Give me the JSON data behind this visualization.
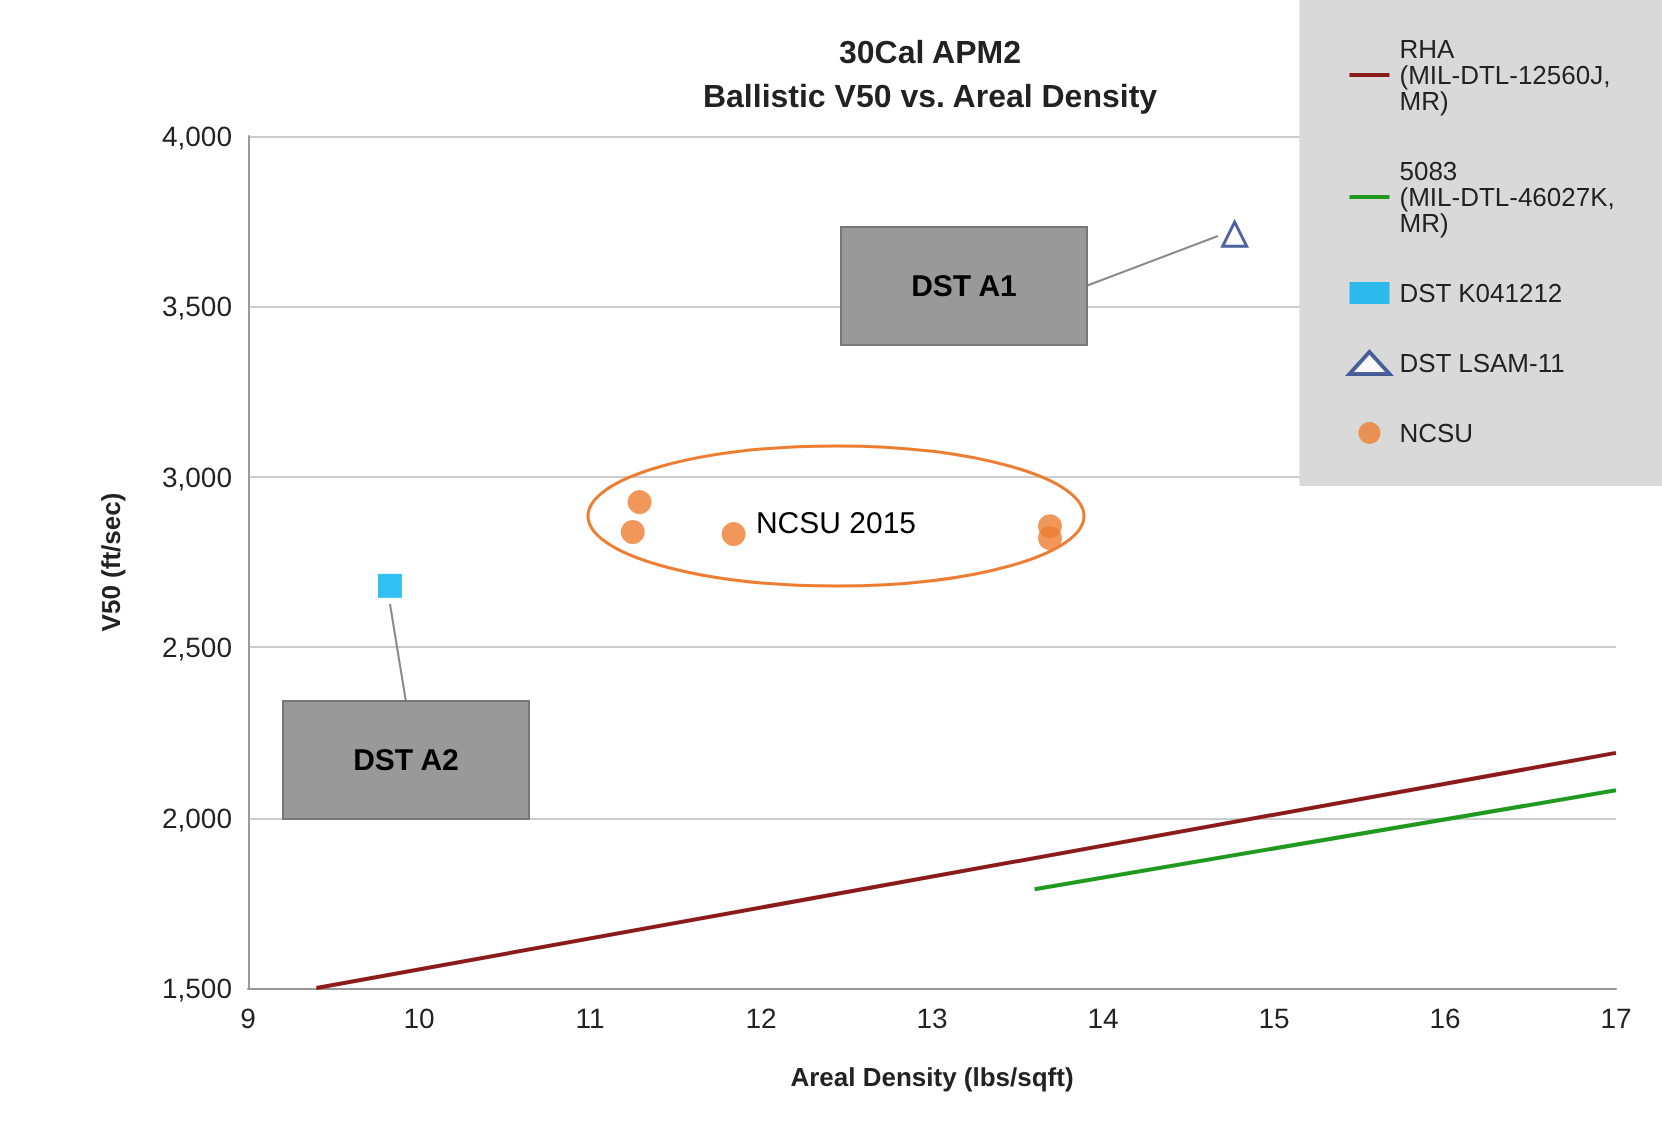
{
  "chart_data": {
    "type": "scatter",
    "title": "30Cal APM2",
    "subtitle": "Ballistic V50 vs. Areal Density",
    "xlabel": "Areal Density (lbs/sqft)",
    "ylabel": "V50 (ft/sec)",
    "xlim": [
      9,
      17
    ],
    "xticks": [
      9,
      10,
      11,
      12,
      13,
      14,
      15,
      16,
      17
    ],
    "ylim": [
      1500,
      4000
    ],
    "yticks": [
      {
        "value": 1500,
        "label": "1,500"
      },
      {
        "value": 2000,
        "label": "2,000"
      },
      {
        "value": 2500,
        "label": "2,500"
      },
      {
        "value": 3000,
        "label": "3,000"
      },
      {
        "value": 3500,
        "label": "3,500"
      },
      {
        "value": 4000,
        "label": "4,000"
      }
    ],
    "grid": "y",
    "legend": "top right",
    "series": [
      {
        "name": "RHA (MIL-DTL-12560J, MR)",
        "type": "line",
        "marker": "none",
        "color": "#8b1a1a",
        "x": [
          9.4,
          17
        ],
        "values": [
          1500,
          2190
        ]
      },
      {
        "name": "5083 (MIL-DTL-46027K, MR)",
        "type": "line",
        "marker": "none",
        "color": "#1f9a1f",
        "x": [
          13.6,
          17
        ],
        "values": [
          1790,
          2080
        ]
      },
      {
        "name": "DST K041212",
        "marker": "square",
        "color": "#00b0f0",
        "x": [
          9.83
        ],
        "values": [
          2680
        ]
      },
      {
        "name": "DST LSAM-11",
        "marker": "triangle",
        "color": "#1f3c88",
        "x": [
          14.77
        ],
        "values": [
          3712
        ]
      },
      {
        "name": "NCSU",
        "marker": "circle",
        "color": "#ed7d31",
        "x": [
          11.25,
          11.29,
          11.84,
          13.69,
          13.69
        ],
        "values": [
          2838,
          2926,
          2832,
          2855,
          2820
        ]
      }
    ],
    "annotations": [
      "DST A1",
      "DST A2",
      "NCSU 2015"
    ]
  }
}
